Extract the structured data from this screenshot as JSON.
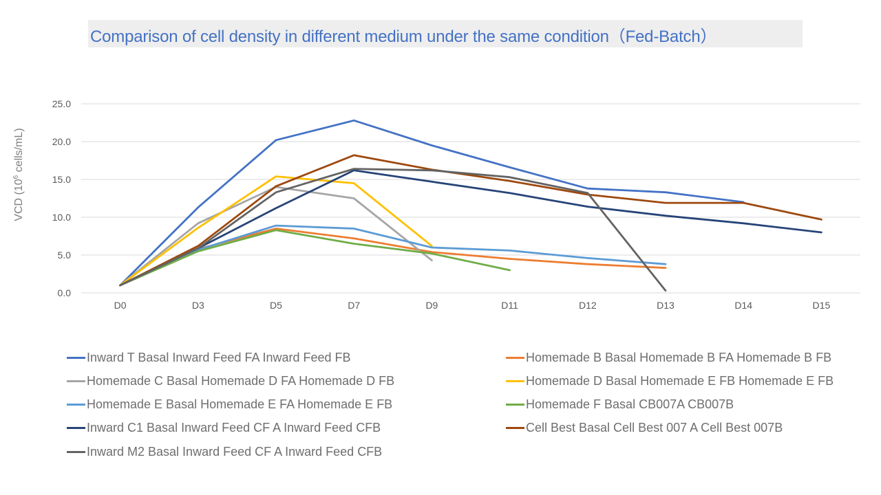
{
  "chart_data": {
    "type": "line",
    "title": "Comparison of cell density in different medium under the same condition（Fed-Batch）",
    "xlabel": "",
    "ylabel": "VCD (10⁶ cells/mL)",
    "ylabel_parts": {
      "prefix": "VCD (10",
      "sup": "6",
      "suffix": " cells/mL)"
    },
    "ylim": [
      0,
      25
    ],
    "yticks": [
      "0.0",
      "5.0",
      "10.0",
      "15.0",
      "20.0",
      "25.0"
    ],
    "ytick_values": [
      0,
      5,
      10,
      15,
      20,
      25
    ],
    "grid": true,
    "legend_position": "bottom",
    "categories": [
      "D0",
      "D3",
      "D5",
      "D7",
      "D9",
      "D11",
      "D12",
      "D13",
      "D14",
      "D15"
    ],
    "series": [
      {
        "name": "Inward T Basal Inward Feed FA Inward Feed FB",
        "color": "#4472c4",
        "values": [
          1.0,
          11.3,
          20.2,
          22.8,
          19.5,
          16.6,
          13.8,
          13.3,
          12.0,
          null
        ]
      },
      {
        "name": "Homemade B Basal Homemade B FA Homemade B FB",
        "color": "#ed7d31",
        "values": [
          1.0,
          5.8,
          8.5,
          7.2,
          5.4,
          4.5,
          3.8,
          3.3,
          null,
          null
        ]
      },
      {
        "name": "Homemade C Basal Homemade D FA Homemade D FB",
        "color": "#a5a5a5",
        "values": [
          1.0,
          9.2,
          14.0,
          12.5,
          4.3,
          null,
          null,
          null,
          null,
          null
        ]
      },
      {
        "name": "Homemade D Basal Homemade E FB Homemade E FB",
        "color": "#ffc000",
        "values": [
          1.0,
          8.6,
          15.4,
          14.5,
          6.2,
          null,
          null,
          null,
          null,
          null
        ]
      },
      {
        "name": "Homemade E Basal Homemade E FA Homemade E FB",
        "color": "#5b9bd5",
        "values": [
          1.0,
          5.7,
          8.9,
          8.5,
          6.0,
          5.6,
          4.6,
          3.8,
          null,
          null
        ]
      },
      {
        "name": "Homemade F Basal CB007A CB007B",
        "color": "#70ad47",
        "values": [
          1.0,
          5.5,
          8.3,
          6.5,
          5.2,
          3.0,
          null,
          null,
          null,
          null
        ]
      },
      {
        "name": "Inward C1 Basal Inward Feed CF A Inward Feed CFB",
        "color": "#264478",
        "values": [
          1.0,
          5.9,
          11.2,
          16.2,
          14.7,
          13.2,
          11.4,
          10.2,
          9.2,
          8.0
        ]
      },
      {
        "name": "Cell Best Basal Cell Best 007 A Cell Best 007B",
        "color": "#9e480e",
        "values": [
          1.0,
          6.2,
          14.1,
          18.2,
          16.3,
          14.8,
          13.0,
          11.9,
          11.9,
          9.7
        ]
      },
      {
        "name": "Inward M2 Basal Inward Feed CF A Inward Feed CFB",
        "color": "#636363",
        "values": [
          1.0,
          5.9,
          13.3,
          16.4,
          16.2,
          15.3,
          13.2,
          0.3,
          null,
          null
        ]
      }
    ]
  }
}
